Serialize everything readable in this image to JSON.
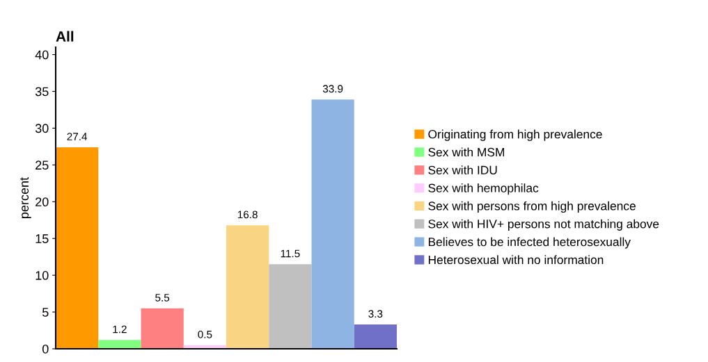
{
  "chart_data": {
    "type": "bar",
    "title": "All",
    "ylabel": "percent",
    "categories": [
      null,
      null,
      null,
      null,
      null,
      null,
      null,
      null
    ],
    "series": [
      {
        "name": "Originating from high prevalence",
        "color": "#ff9900",
        "values": [
          27.4,
          null,
          null,
          null,
          null,
          null,
          null,
          null
        ]
      },
      {
        "name": "Sex with MSM",
        "color": "#80ff80",
        "values": [
          null,
          1.2,
          null,
          null,
          null,
          null,
          null,
          null
        ]
      },
      {
        "name": "Sex with IDU",
        "color": "#ff8080",
        "values": [
          null,
          null,
          5.5,
          null,
          null,
          null,
          null,
          null
        ]
      },
      {
        "name": "Sex with hemophilac",
        "color": "#ffccff",
        "values": [
          null,
          null,
          null,
          0.5,
          null,
          null,
          null,
          null
        ]
      },
      {
        "name": "Sex with persons from high prevalence",
        "color": "#f9d583",
        "values": [
          null,
          null,
          null,
          null,
          16.8,
          null,
          null,
          null
        ]
      },
      {
        "name": "Sex with HIV+ persons not matching above",
        "color": "#c0c0c0",
        "values": [
          null,
          null,
          null,
          null,
          null,
          11.5,
          null,
          null
        ]
      },
      {
        "name": "Believes to be infected heterosexually",
        "color": "#8db4e2",
        "values": [
          null,
          null,
          null,
          null,
          null,
          null,
          33.9,
          null
        ]
      },
      {
        "name": "Heterosexual with no information",
        "color": "#7070c8",
        "values": [
          null,
          null,
          null,
          null,
          null,
          null,
          null,
          3.3
        ]
      }
    ],
    "ylim": [
      0,
      41
    ],
    "yticks": [
      0,
      5,
      10,
      15,
      20,
      25,
      30,
      35,
      40
    ],
    "data_labels": true,
    "grid": false,
    "legend": "right"
  }
}
